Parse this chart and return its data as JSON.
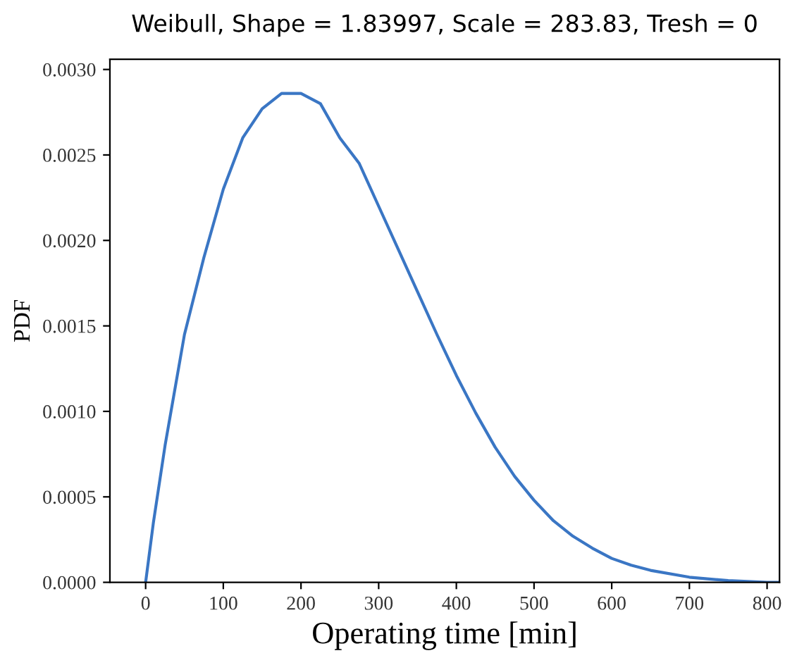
{
  "chart_data": {
    "type": "line",
    "title": "Weibull, Shape = 1.83997, Scale = 283.83, Tresh = 0",
    "xlabel": "Operating time [min]",
    "ylabel": "PDF",
    "x": [
      0,
      10,
      25,
      50,
      75,
      100,
      125,
      150,
      175,
      200,
      225,
      250,
      275,
      300,
      325,
      350,
      375,
      400,
      425,
      450,
      475,
      500,
      525,
      550,
      575,
      600,
      625,
      650,
      700,
      750,
      800,
      816
    ],
    "series": [
      {
        "color": "#3a76c4",
        "values": [
          0,
          0.00035,
          0.0008,
          0.00145,
          0.0019,
          0.0023,
          0.0026,
          0.00277,
          0.00286,
          0.00286,
          0.0028,
          0.0026,
          0.00245,
          0.0022,
          0.00195,
          0.0017,
          0.00145,
          0.00121,
          0.00099,
          0.00079,
          0.00062,
          0.00048,
          0.00036,
          0.00027,
          0.0002,
          0.00014,
          0.0001,
          7e-05,
          3e-05,
          1e-05,
          0,
          0
        ]
      }
    ],
    "xlim": [
      -46,
      816
    ],
    "ylim": [
      0,
      0.00306
    ],
    "xticks": [
      0,
      100,
      200,
      300,
      400,
      500,
      600,
      700,
      800
    ],
    "yticks": [
      {
        "value": 0,
        "label": "0.0000"
      },
      {
        "value": 0.0005,
        "label": "0.0005"
      },
      {
        "value": 0.001,
        "label": "0.0010"
      },
      {
        "value": 0.0015,
        "label": "0.0015"
      },
      {
        "value": 0.002,
        "label": "0.0020"
      },
      {
        "value": 0.0025,
        "label": "0.0025"
      },
      {
        "value": 0.003,
        "label": "0.0030"
      }
    ],
    "grid": false
  }
}
